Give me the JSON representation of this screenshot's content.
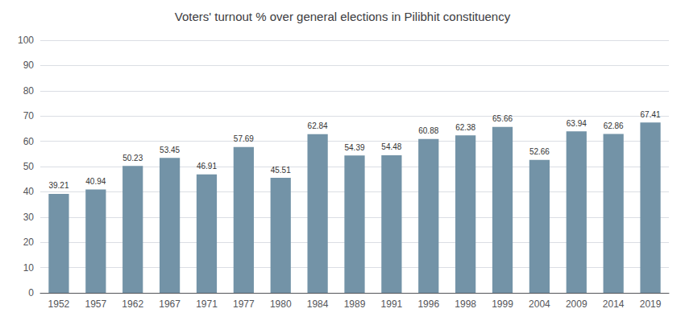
{
  "chart_data": {
    "type": "bar",
    "title": "Voters' turnout % over general elections in Pilibhit constituency",
    "categories": [
      "1952",
      "1957",
      "1962",
      "1967",
      "1971",
      "1977",
      "1980",
      "1984",
      "1989",
      "1991",
      "1996",
      "1998",
      "1999",
      "2004",
      "2009",
      "2014",
      "2019"
    ],
    "values": [
      39.21,
      40.94,
      50.23,
      53.45,
      46.91,
      57.69,
      45.51,
      62.84,
      54.39,
      54.48,
      60.88,
      62.38,
      65.66,
      52.66,
      63.94,
      62.86,
      67.41
    ],
    "color": "#7393a7",
    "ylim": [
      0,
      100
    ],
    "yticks": [
      0,
      10,
      20,
      30,
      40,
      50,
      60,
      70,
      80,
      90,
      100
    ],
    "grid": true,
    "data_labels": true
  }
}
